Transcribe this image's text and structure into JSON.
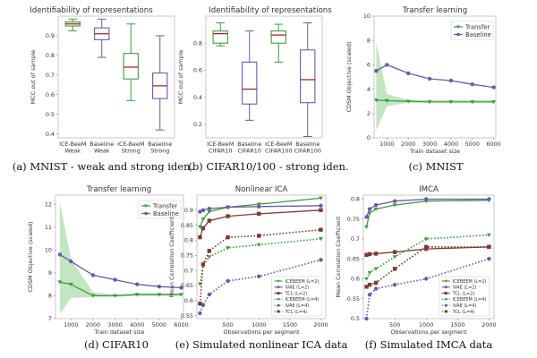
{
  "colors": {
    "green": "#3f9b3f",
    "purple": "#6a5aa8",
    "brown": "#7a3b2f",
    "median": "#a0202a",
    "band": "#8fcf8f"
  },
  "chart_data": [
    {
      "id": "a",
      "type": "box",
      "title": "Identifiability of representations",
      "ylabel": "MCC out of sample",
      "caption": "(a)  MNIST - weak and strong iden.",
      "ylim": [
        0.38,
        1.0
      ],
      "yticks": [
        0.4,
        0.5,
        0.6,
        0.7,
        0.8,
        0.9
      ],
      "boxes": [
        {
          "label": [
            "ICE-BeeM",
            "Weak"
          ],
          "series": "green",
          "min": 0.925,
          "q1": 0.95,
          "median": 0.96,
          "q3": 0.97,
          "max": 0.985
        },
        {
          "label": [
            "Baseline",
            "Weak"
          ],
          "series": "purple",
          "min": 0.79,
          "q1": 0.88,
          "median": 0.91,
          "q3": 0.94,
          "max": 0.985
        },
        {
          "label": [
            "ICE-BeeM",
            "Strong"
          ],
          "series": "green",
          "min": 0.57,
          "q1": 0.68,
          "median": 0.74,
          "q3": 0.81,
          "max": 0.96
        },
        {
          "label": [
            "Baseline",
            "Strong"
          ],
          "series": "purple",
          "min": 0.42,
          "q1": 0.58,
          "median": 0.645,
          "q3": 0.71,
          "max": 0.9
        }
      ]
    },
    {
      "id": "b",
      "type": "box",
      "title": "Identifiability of representations",
      "ylabel": "MCC out of sample",
      "caption": "(b)  CIFAR10/100 - strong iden.",
      "ylim": [
        0.1,
        1.0
      ],
      "yticks": [
        0.2,
        0.4,
        0.6,
        0.8
      ],
      "boxes": [
        {
          "label": [
            "ICE-BeeM",
            "CIFAR10"
          ],
          "series": "green",
          "min": 0.78,
          "q1": 0.8,
          "median": 0.87,
          "q3": 0.89,
          "max": 0.95
        },
        {
          "label": [
            "Baseline",
            "CIFAR10"
          ],
          "series": "purple",
          "min": 0.23,
          "q1": 0.35,
          "median": 0.46,
          "q3": 0.66,
          "max": 0.89
        },
        {
          "label": [
            "ICE-BeeM",
            "CIFAR100"
          ],
          "series": "green",
          "min": 0.66,
          "q1": 0.8,
          "median": 0.86,
          "q3": 0.89,
          "max": 0.94
        },
        {
          "label": [
            "Baseline",
            "CIFAR100"
          ],
          "series": "purple",
          "min": 0.11,
          "q1": 0.36,
          "median": 0.53,
          "q3": 0.75,
          "max": 0.95
        }
      ]
    },
    {
      "id": "c",
      "type": "line",
      "title": "Transfer learning",
      "xlabel": "Train dataset size",
      "ylabel": "CDSM Objective (scaled)",
      "caption": "(c)  MNIST",
      "xlim": [
        400,
        6100
      ],
      "ylim": [
        0,
        10
      ],
      "xticks": [
        1000,
        2000,
        3000,
        4000,
        5000,
        6000
      ],
      "yticks": [
        0,
        2,
        4,
        6,
        8,
        10
      ],
      "legend": "top-right",
      "band": {
        "x": [
          500,
          1000,
          2000,
          3000,
          4000,
          5000,
          6000
        ],
        "lower": [
          0.6,
          2.6,
          2.9,
          2.9,
          2.9,
          2.9,
          2.9
        ],
        "upper": [
          7.8,
          3.6,
          3.1,
          3.1,
          3.1,
          3.1,
          3.1
        ]
      },
      "series": [
        {
          "name": "Transfer",
          "color": "green",
          "marker": "tri",
          "x": [
            500,
            1000,
            2000,
            3000,
            4000,
            5000,
            6000
          ],
          "y": [
            3.1,
            3.05,
            3.0,
            2.95,
            2.95,
            2.95,
            2.95
          ]
        },
        {
          "name": "Baseline",
          "color": "purple",
          "marker": "circle",
          "x": [
            500,
            1000,
            2000,
            3000,
            4000,
            5000,
            6000
          ],
          "y": [
            5.5,
            6.0,
            5.3,
            4.85,
            4.7,
            4.4,
            4.15
          ]
        }
      ]
    },
    {
      "id": "d",
      "type": "line",
      "title": "Transfer learning",
      "xlabel": "Train dataset size",
      "ylabel": "CDSM Objective (scaled)",
      "caption": "(d)  CIFAR10",
      "xlim": [
        300,
        6100
      ],
      "ylim": [
        7,
        12.4
      ],
      "xticks": [
        1000,
        2000,
        3000,
        4000,
        5000,
        6000
      ],
      "yticks": [
        7,
        8,
        9,
        10,
        11,
        12
      ],
      "legend": "top-right",
      "band": {
        "x": [
          500,
          1000,
          2000,
          3000,
          4000,
          5000,
          6000
        ],
        "lower": [
          7.2,
          7.9,
          7.95,
          7.95,
          8.0,
          8.0,
          8.0
        ],
        "upper": [
          12.1,
          9.6,
          8.15,
          8.05,
          8.1,
          8.1,
          8.1
        ]
      },
      "series": [
        {
          "name": "Transfer",
          "color": "green",
          "marker": "tri",
          "x": [
            500,
            1000,
            2000,
            3000,
            4000,
            5000,
            6000
          ],
          "y": [
            8.6,
            8.5,
            8.0,
            8.0,
            8.05,
            8.05,
            8.05
          ]
        },
        {
          "name": "Baseline",
          "color": "purple",
          "marker": "circle",
          "x": [
            500,
            1000,
            2000,
            3000,
            4000,
            5000,
            6000
          ],
          "y": [
            9.8,
            9.5,
            8.9,
            8.7,
            8.5,
            8.4,
            8.35
          ]
        }
      ]
    },
    {
      "id": "e",
      "type": "line",
      "title": "Nonlinear ICA",
      "xlabel": "Observations per segment",
      "ylabel": "Mean Correlation Coefficient",
      "caption": "(e)  Simulated nonlinear ICA data",
      "xlim": [
        0,
        2080
      ],
      "ylim": [
        0.54,
        0.95
      ],
      "xticks": [
        500,
        1000,
        1500,
        2000
      ],
      "yticks": [
        0.55,
        0.6,
        0.65,
        0.7,
        0.75,
        0.8,
        0.85,
        0.9
      ],
      "legend": "bottom-left",
      "series": [
        {
          "name": "ICEBEEM (L=2)",
          "color": "green",
          "marker": "tri",
          "dash": false,
          "x": [
            50,
            100,
            200,
            500,
            1000,
            2000
          ],
          "y": [
            0.845,
            0.87,
            0.895,
            0.91,
            0.92,
            0.94
          ]
        },
        {
          "name": "iVAE (L=2)",
          "color": "purple",
          "marker": "circle",
          "dash": false,
          "x": [
            50,
            100,
            200,
            500,
            1000,
            2000
          ],
          "y": [
            0.895,
            0.9,
            0.905,
            0.91,
            0.912,
            0.915
          ]
        },
        {
          "name": "TCL (L=2)",
          "color": "brown",
          "marker": "square",
          "dash": false,
          "x": [
            50,
            100,
            200,
            500,
            1000,
            2000
          ],
          "y": [
            0.81,
            0.84,
            0.865,
            0.88,
            0.888,
            0.9
          ]
        },
        {
          "name": "ICEBEEM (L=4)",
          "color": "green",
          "marker": "tri",
          "dash": true,
          "x": [
            50,
            100,
            200,
            500,
            1000,
            2000
          ],
          "y": [
            0.655,
            0.715,
            0.745,
            0.775,
            0.785,
            0.805
          ]
        },
        {
          "name": "iVAE (L=4)",
          "color": "purple",
          "marker": "circle",
          "dash": true,
          "x": [
            50,
            100,
            200,
            500,
            1000,
            2000
          ],
          "y": [
            0.558,
            0.585,
            0.62,
            0.665,
            0.68,
            0.735
          ]
        },
        {
          "name": "TCL (L=4)",
          "color": "brown",
          "marker": "square",
          "dash": true,
          "x": [
            50,
            100,
            200,
            500,
            1000,
            2000
          ],
          "y": [
            0.59,
            0.72,
            0.765,
            0.81,
            0.815,
            0.835
          ]
        }
      ]
    },
    {
      "id": "f",
      "type": "line",
      "title": "IMCA",
      "xlabel": "Observations per segment",
      "ylabel": "Mean Correlation Coefficient",
      "caption": "(f)  Simulated IMCA data",
      "xlim": [
        0,
        2080
      ],
      "ylim": [
        0.5,
        0.81
      ],
      "xticks": [
        500,
        1000,
        1500,
        2000
      ],
      "yticks": [
        0.5,
        0.55,
        0.6,
        0.65,
        0.7,
        0.75,
        0.8
      ],
      "legend": "bottom-left",
      "series": [
        {
          "name": "ICEBEEM (L=2)",
          "color": "green",
          "marker": "tri",
          "dash": false,
          "x": [
            50,
            100,
            200,
            500,
            1000,
            2000
          ],
          "y": [
            0.73,
            0.765,
            0.775,
            0.785,
            0.795,
            0.797
          ]
        },
        {
          "name": "iVAE (L=2)",
          "color": "purple",
          "marker": "circle",
          "dash": false,
          "x": [
            50,
            100,
            200,
            500,
            1000,
            2000
          ],
          "y": [
            0.755,
            0.775,
            0.785,
            0.795,
            0.8,
            0.8
          ]
        },
        {
          "name": "TCL (L=2)",
          "color": "brown",
          "marker": "square",
          "dash": false,
          "x": [
            50,
            100,
            200,
            500,
            1000,
            2000
          ],
          "y": [
            0.66,
            0.662,
            0.663,
            0.667,
            0.675,
            0.68
          ]
        },
        {
          "name": "ICEBEEM (L=4)",
          "color": "green",
          "marker": "tri",
          "dash": true,
          "x": [
            50,
            100,
            200,
            500,
            1000,
            2000
          ],
          "y": [
            0.6,
            0.615,
            0.625,
            0.655,
            0.7,
            0.71
          ]
        },
        {
          "name": "iVAE (L=4)",
          "color": "purple",
          "marker": "circle",
          "dash": true,
          "x": [
            50,
            100,
            200,
            500,
            1000,
            2000
          ],
          "y": [
            0.5,
            0.56,
            0.575,
            0.585,
            0.6,
            0.65
          ]
        },
        {
          "name": "TCL (L=4)",
          "color": "brown",
          "marker": "square",
          "dash": true,
          "x": [
            50,
            100,
            200,
            500,
            1000,
            2000
          ],
          "y": [
            0.58,
            0.585,
            0.59,
            0.625,
            0.68,
            0.68
          ]
        }
      ]
    }
  ]
}
